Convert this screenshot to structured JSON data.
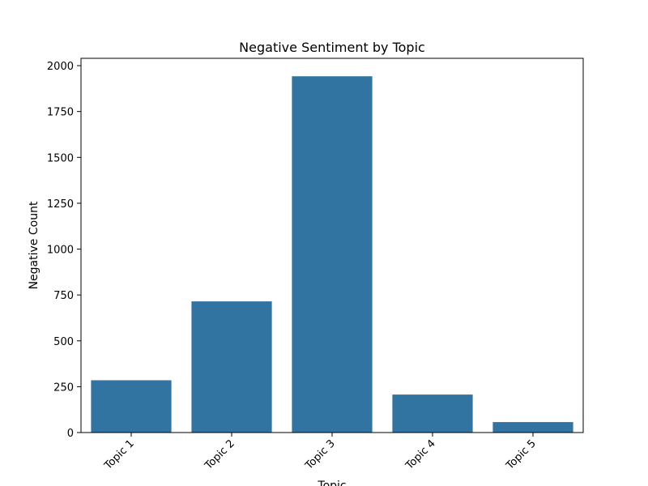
{
  "chart_data": {
    "type": "bar",
    "title": "Negative Sentiment by Topic",
    "xlabel": "Topic",
    "ylabel": "Negative Count",
    "categories": [
      "Topic 1",
      "Topic 2",
      "Topic 3",
      "Topic 4",
      "Topic 5"
    ],
    "values": [
      285,
      715,
      1942,
      207,
      57
    ],
    "ylim": [
      0,
      2040
    ],
    "yticks": [
      0,
      250,
      500,
      750,
      1000,
      1250,
      1500,
      1750,
      2000
    ],
    "ytick_labels": [
      "0",
      "250",
      "500",
      "750",
      "1000",
      "1250",
      "1500",
      "1750",
      "2000"
    ],
    "x_tick_rotation_deg": 45,
    "bar_color": "#3274a1",
    "grid": false,
    "legend": "none"
  }
}
